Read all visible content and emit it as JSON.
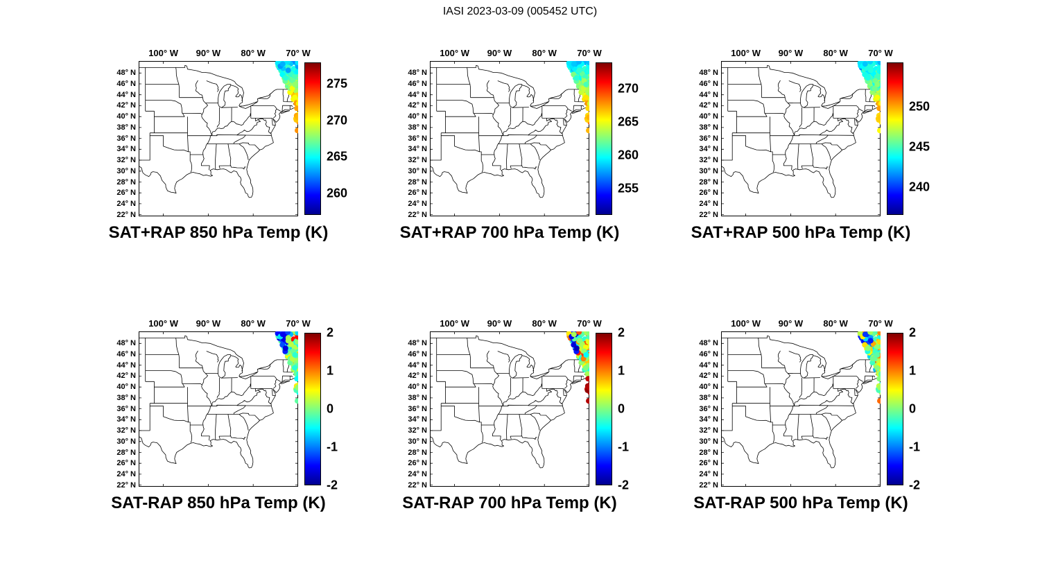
{
  "title": "IASI 2023-03-09 (005452 UTC)",
  "axis": {
    "lon_tick_labels": [
      "100° W",
      "90° W",
      "80° W",
      "70° W"
    ],
    "lon_tick_values": [
      -100,
      -90,
      -80,
      -70
    ],
    "lat_tick_labels": [
      "48° N",
      "46° N",
      "44° N",
      "42° N",
      "40° N",
      "38° N",
      "36° N",
      "34° N",
      "32° N",
      "30° N",
      "28° N",
      "26° N",
      "24° N",
      "22° N"
    ],
    "lat_tick_values": [
      48,
      46,
      44,
      42,
      40,
      38,
      36,
      34,
      32,
      30,
      28,
      26,
      24,
      22
    ]
  },
  "panels": [
    {
      "title": "SAT+RAP 850 hPa Temp (K)",
      "cb_min": 257,
      "cb_max": 278,
      "cb_ticks": [
        275,
        270,
        265,
        260
      ]
    },
    {
      "title": "SAT+RAP 700 hPa Temp (K)",
      "cb_min": 251,
      "cb_max": 274,
      "cb_ticks": [
        270,
        265,
        260,
        255
      ]
    },
    {
      "title": "SAT+RAP 500 hPa Temp (K)",
      "cb_min": 236.5,
      "cb_max": 255.5,
      "cb_ticks": [
        250,
        245,
        240
      ]
    },
    {
      "title": "SAT-RAP 850 hPa Temp (K)",
      "cb_min": -2,
      "cb_max": 2,
      "cb_ticks": [
        2,
        1,
        0,
        -1,
        -2
      ]
    },
    {
      "title": "SAT-RAP 700 hPa Temp (K)",
      "cb_min": -2,
      "cb_max": 2,
      "cb_ticks": [
        2,
        1,
        0,
        -1,
        -2
      ]
    },
    {
      "title": "SAT-RAP 500 hPa Temp (K)",
      "cb_min": -2,
      "cb_max": 2,
      "cb_ticks": [
        2,
        1,
        0,
        -1,
        -2
      ]
    }
  ],
  "chart_data": [
    {
      "type": "scatter",
      "title": "SAT+RAP 850 hPa Temp (K)",
      "colormap": "jet",
      "color_range": [
        257,
        278
      ],
      "colorbar_ticks": [
        260,
        265,
        270,
        275
      ],
      "lon_ticks_deg_w": [
        100,
        90,
        80,
        70
      ],
      "lat_ticks_deg_n": [
        48,
        46,
        44,
        42,
        40,
        38,
        36,
        34,
        32,
        30,
        28,
        26,
        24,
        22
      ],
      "map_extent": {
        "lon": [
          -105.5,
          -70
        ],
        "lat": [
          21.7,
          50.2
        ]
      },
      "swath": "IASI retrieval footprints over New England and NW Atlantic, ~38.3-50.2N, ~75-69.4W, plus a thin strip along ~70W down to ~37.5N",
      "values": "about 270-273 K near 41-43N grading to about 262-266 K near 48-50N (yellow/green south, cyan north)"
    },
    {
      "type": "scatter",
      "title": "SAT+RAP 700 hPa Temp (K)",
      "colormap": "jet",
      "color_range": [
        251,
        274
      ],
      "colorbar_ticks": [
        255,
        260,
        265,
        270
      ],
      "lon_ticks_deg_w": [
        100,
        90,
        80,
        70
      ],
      "lat_ticks_deg_n": [
        48,
        46,
        44,
        42,
        40,
        38,
        36,
        34,
        32,
        30,
        28,
        26,
        24,
        22
      ],
      "map_extent": {
        "lon": [
          -105.5,
          -70
        ],
        "lat": [
          21.7,
          50.2
        ]
      },
      "swath": "same footprint locations as 850 hPa panel",
      "values": "about 265-268 K in the south of the swath to about 256-260 K in the north"
    },
    {
      "type": "scatter",
      "title": "SAT+RAP 500 hPa Temp (K)",
      "colormap": "jet",
      "color_range": [
        236.5,
        255.5
      ],
      "colorbar_ticks": [
        240,
        245,
        250
      ],
      "lon_ticks_deg_w": [
        100,
        90,
        80,
        70
      ],
      "lat_ticks_deg_n": [
        48,
        46,
        44,
        42,
        40,
        38,
        36,
        34,
        32,
        30,
        28,
        26,
        24,
        22
      ],
      "map_extent": {
        "lon": [
          -105.5,
          -70
        ],
        "lat": [
          21.7,
          50.2
        ]
      },
      "swath": "same footprint locations as 850 hPa panel",
      "values": "about 247-250 K in the south of the swath to about 241-244 K in the north (cyan/yellow mix)"
    },
    {
      "type": "scatter",
      "title": "SAT-RAP 850 hPa Temp (K)",
      "colormap": "jet",
      "color_range": [
        -2,
        2
      ],
      "colorbar_ticks": [
        -2,
        -1,
        0,
        1,
        2
      ],
      "lon_ticks_deg_w": [
        100,
        90,
        80,
        70
      ],
      "lat_ticks_deg_n": [
        48,
        46,
        44,
        42,
        40,
        38,
        36,
        34,
        32,
        30,
        28,
        26,
        24,
        22
      ],
      "map_extent": {
        "lon": [
          -105.5,
          -70
        ],
        "lat": [
          21.7,
          50.2
        ]
      },
      "swath": "same footprint locations as top row",
      "values": "differences mostly -1 to +1 K (green/cyan); dark-blue cluster near -1.5 K in NW part of swath; scattered orange/red +1 to +2 K dots near top"
    },
    {
      "type": "scatter",
      "title": "SAT-RAP 700 hPa Temp (K)",
      "colormap": "jet",
      "color_range": [
        -2,
        2
      ],
      "colorbar_ticks": [
        -2,
        -1,
        0,
        1,
        2
      ],
      "lon_ticks_deg_w": [
        100,
        90,
        80,
        70
      ],
      "lat_ticks_deg_n": [
        48,
        46,
        44,
        42,
        40,
        38,
        36,
        34,
        32,
        30,
        28,
        26,
        24,
        22
      ],
      "map_extent": {
        "lon": [
          -105.5,
          -70
        ],
        "lat": [
          21.7,
          50.2
        ]
      },
      "swath": "same footprint locations as top row",
      "values": "mostly -1 to +1 K with dark-blue cluster in NW; dark-red strip near +1.5 to +2 K along the coast 38-42N"
    },
    {
      "type": "scatter",
      "title": "SAT-RAP 500 hPa Temp (K)",
      "colormap": "jet",
      "color_range": [
        -2,
        2
      ],
      "colorbar_ticks": [
        -2,
        -1,
        0,
        1,
        2
      ],
      "lon_ticks_deg_w": [
        100,
        90,
        80,
        70
      ],
      "lat_ticks_deg_n": [
        48,
        46,
        44,
        42,
        40,
        38,
        36,
        34,
        32,
        30,
        28,
        26,
        24,
        22
      ],
      "map_extent": {
        "lon": [
          -105.5,
          -70
        ],
        "lat": [
          21.7,
          50.2
        ]
      },
      "swath": "same footprint locations as top row",
      "values": "mostly -1.5 to +1 K; blues toward the north of the swath, cyan/green toward the south"
    }
  ]
}
